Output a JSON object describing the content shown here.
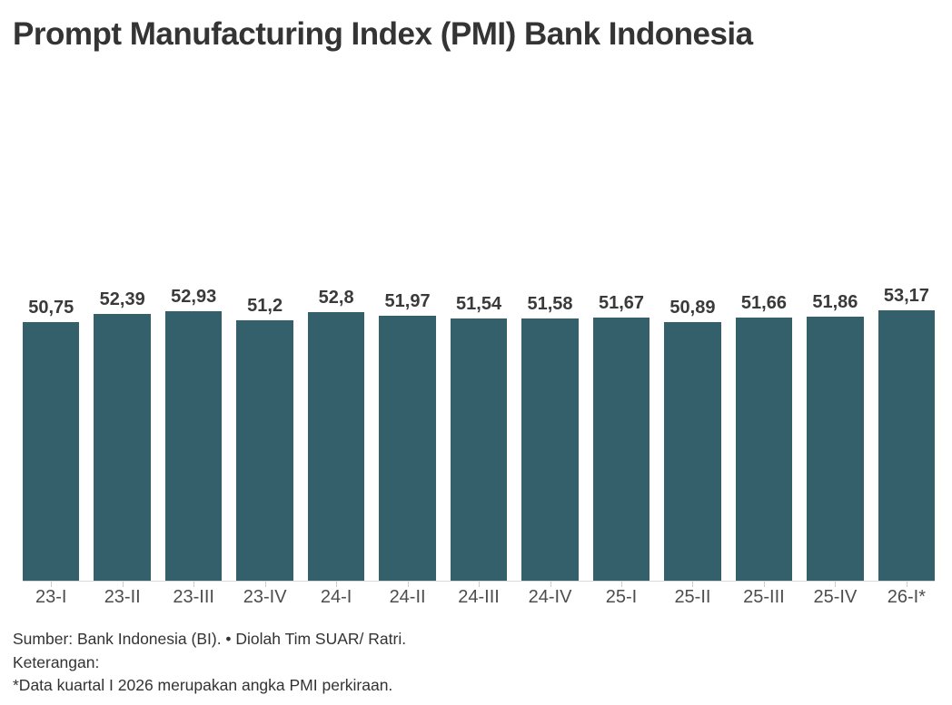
{
  "chart_data": {
    "type": "bar",
    "title": "Prompt Manufacturing Index (PMI) Bank Indonesia",
    "categories": [
      "23-I",
      "23-II",
      "23-III",
      "23-IV",
      "24-I",
      "24-II",
      "24-III",
      "24-IV",
      "25-I",
      "25-II",
      "25-III",
      "25-IV",
      "26-I*"
    ],
    "values": [
      50.75,
      52.39,
      52.93,
      51.2,
      52.8,
      51.97,
      51.54,
      51.58,
      51.67,
      50.89,
      51.66,
      51.86,
      53.17
    ],
    "value_labels": [
      "50,75",
      "52,39",
      "52,93",
      "51,2",
      "52,8",
      "51,97",
      "51,54",
      "51,58",
      "51,67",
      "50,89",
      "51,66",
      "51,86",
      "53,17"
    ],
    "bar_color": "#34606b",
    "axis_line_color": "#dadada",
    "ylim": [
      0,
      53.17
    ],
    "grid": false,
    "legend": "none",
    "value_labels_position": "above-bars",
    "decimal_separator": ","
  },
  "footer": {
    "source_line": "Sumber: Bank Indonesia (BI). • Diolah Tim SUAR/ Ratri.",
    "note_label": "Keterangan:",
    "note_line": "*Data kuartal I 2026 merupakan angka PMI perkiraan."
  }
}
